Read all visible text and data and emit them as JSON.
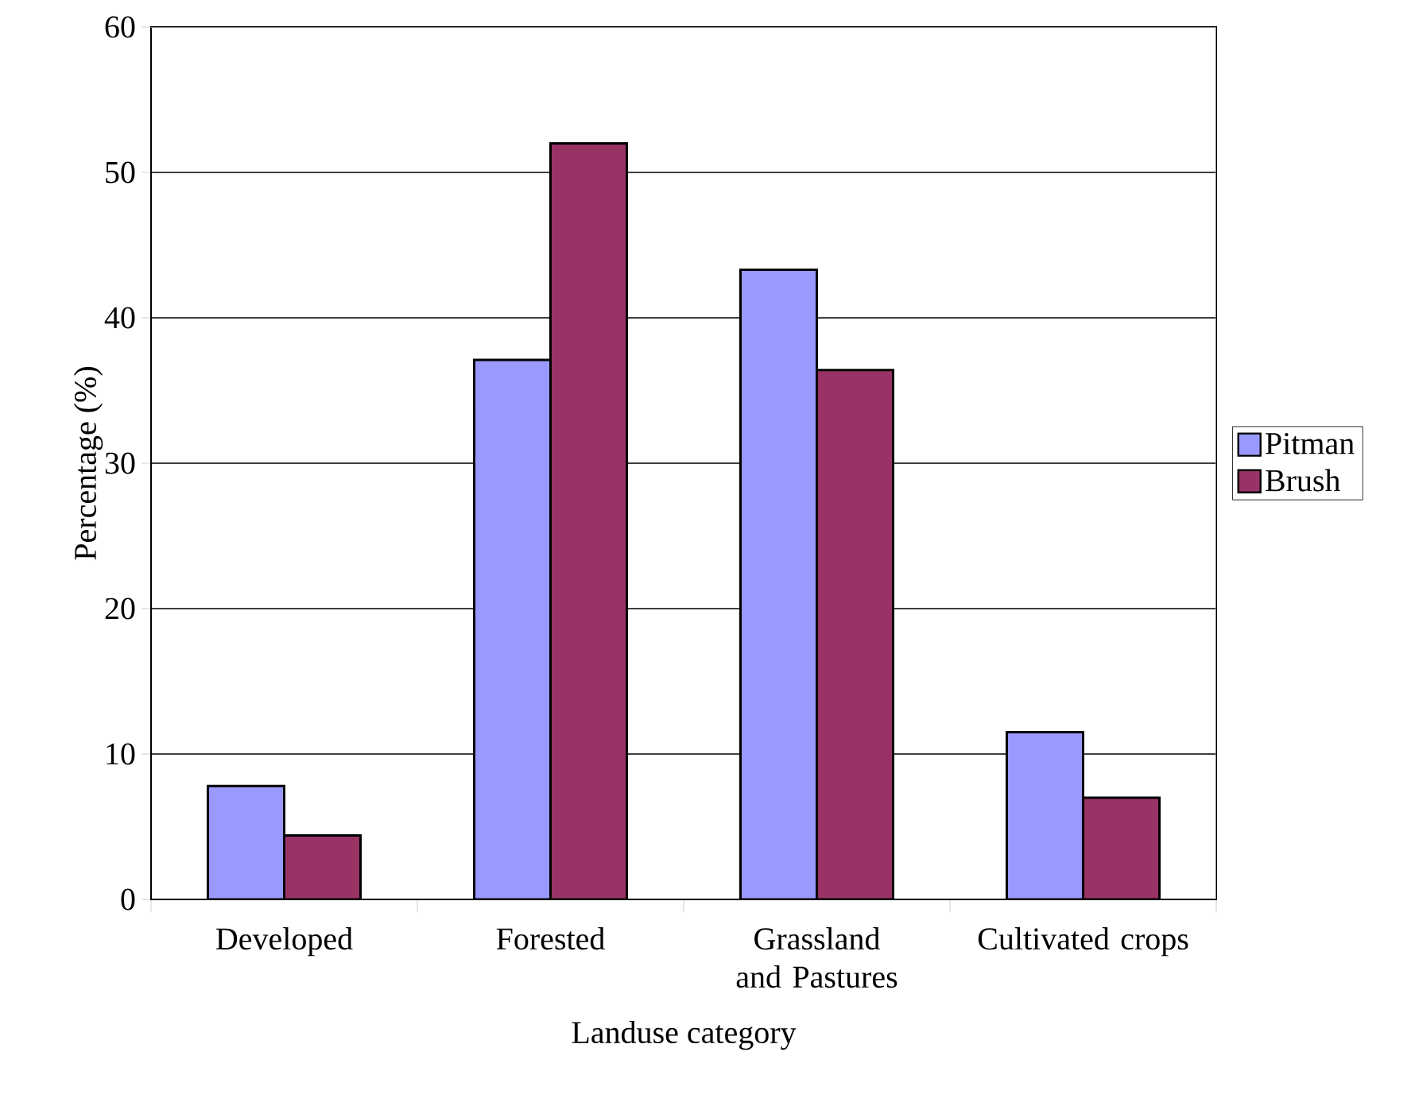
{
  "chart_data": {
    "type": "bar",
    "xlabel": "Landuse category",
    "ylabel": "Percentage (%)",
    "categories": [
      "Developed",
      "Forested",
      "Grassland  and Pastures",
      "Cultivated crops"
    ],
    "series": [
      {
        "name": "Pitman",
        "color": "#9999ff",
        "values": [
          7.8,
          37.1,
          43.3,
          11.5
        ]
      },
      {
        "name": "Brush",
        "color": "#993366",
        "values": [
          4.4,
          52.0,
          36.4,
          7.0
        ]
      }
    ],
    "ylim": [
      0,
      60
    ],
    "yticks": [
      0,
      10,
      20,
      30,
      40,
      50,
      60
    ],
    "grid": "y",
    "legend": "right"
  }
}
